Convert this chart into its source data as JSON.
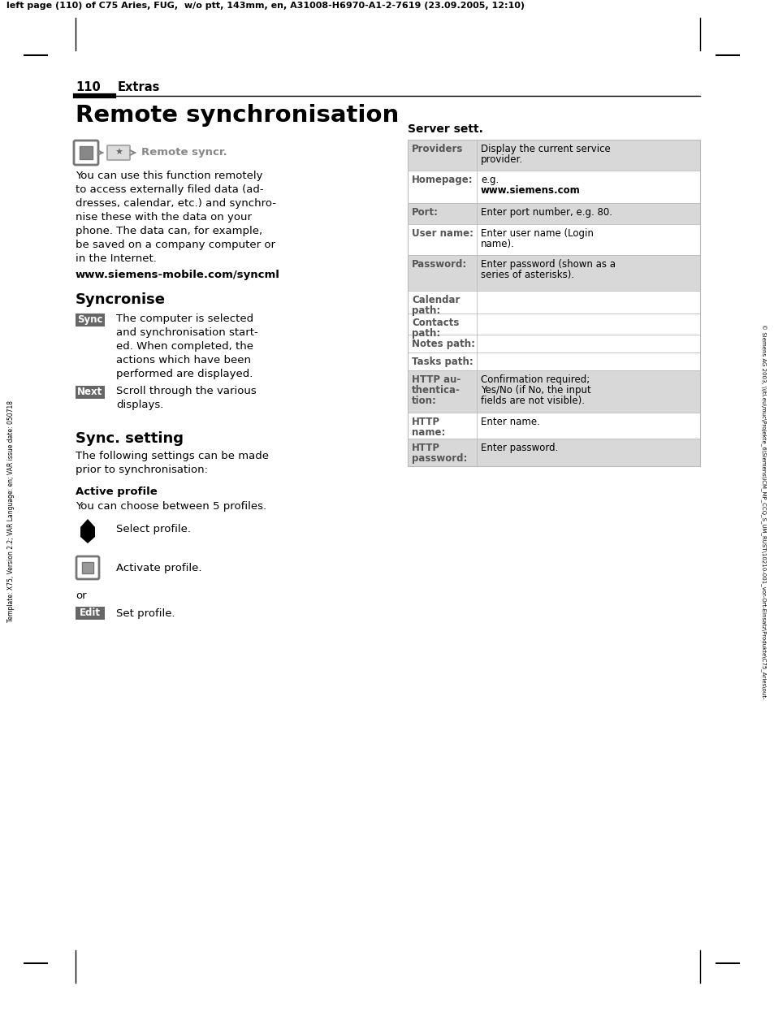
{
  "page_header": "left page (110) of C75 Aries, FUG,  w/o ptt, 143mm, en, A31008-H6970-A1-2-7619 (23.09.2005, 12:10)",
  "page_number": "110",
  "section": "Extras",
  "title": "Remote synchronisation",
  "intro_text": "You can use this function remotely\nto access externally filed data (ad-\ndresses, calendar, etc.) and synchro-\nnise these with the data on your\nphone. The data can, for example,\nbe saved on a company computer or\nin the Internet.",
  "url": "www.siemens-mobile.com/syncml",
  "syncronise_title": "Syncronise",
  "sync_button": "Sync",
  "sync_text": "The computer is selected\nand synchronisation start-\ned. When completed, the\nactions which have been\nperformed are displayed.",
  "next_button": "Next",
  "next_text": "Scroll through the various\ndisplays.",
  "sync_setting_title": "Sync. setting",
  "sync_setting_intro": "The following settings can be made\nprior to synchronisation:",
  "active_profile_label": "Active profile",
  "active_profile_text": "You can choose between 5 profiles.",
  "select_profile_text": "Select profile.",
  "activate_profile_text": "Activate profile.",
  "or_text": "or",
  "edit_button": "Edit",
  "edit_text": "Set profile.",
  "server_sett_title": "Server sett.",
  "table_rows": [
    {
      "label": "Providers",
      "text": "Display the current service\nprovider.",
      "shaded": true,
      "label_bold": true
    },
    {
      "label": "Homepage:",
      "text": "e.g.\nwww.siemens.com",
      "shaded": false,
      "label_bold": true,
      "text_bold_line": 1
    },
    {
      "label": "Port:",
      "text": "Enter port number, e.g. 80.",
      "shaded": true,
      "label_bold": true
    },
    {
      "label": "User name:",
      "text": "Enter user name (Login\nname).",
      "shaded": false,
      "label_bold": true
    },
    {
      "label": "Password:",
      "text": "Enter password (shown as a\nseries of asterisks).",
      "shaded": true,
      "label_bold": true
    },
    {
      "label": "Calendar\npath:",
      "text": "",
      "shaded": false,
      "label_bold": true
    },
    {
      "label": "Contacts\npath:",
      "text": "",
      "shaded": false,
      "label_bold": true
    },
    {
      "label": "Notes path:",
      "text": "",
      "shaded": false,
      "label_bold": true
    },
    {
      "label": "Tasks path:",
      "text": "",
      "shaded": false,
      "label_bold": true
    },
    {
      "label": "HTTP au-\nthentica-\ntion:",
      "text": "Confirmation required;\nYes/No (if No, the input\nfields are not visible).",
      "shaded": true,
      "label_bold": true
    },
    {
      "label": "HTTP\nname:",
      "text": "Enter name.",
      "shaded": false,
      "label_bold": true
    },
    {
      "label": "HTTP\npassword:",
      "text": "Enter password.",
      "shaded": true,
      "label_bold": true
    }
  ],
  "right_margin_text": "© Siemens AG 2003, \\\\ltl.eu\\muc\\Projekte_6\\Siemens\\ICM_MP_CCQ_S_UM_RUST\\10210-001_vor-Ort-Einsatz\\Produkte\\C75_Aries\\out-",
  "left_margin_text": "Template: X75, Version 2.2; VAR Language: en; VAR issue date: 050718",
  "bg_color": "#ffffff",
  "text_color": "#000000",
  "shaded_color": "#d8d8d8",
  "button_bg": "#666666",
  "button_text_color": "#ffffff"
}
